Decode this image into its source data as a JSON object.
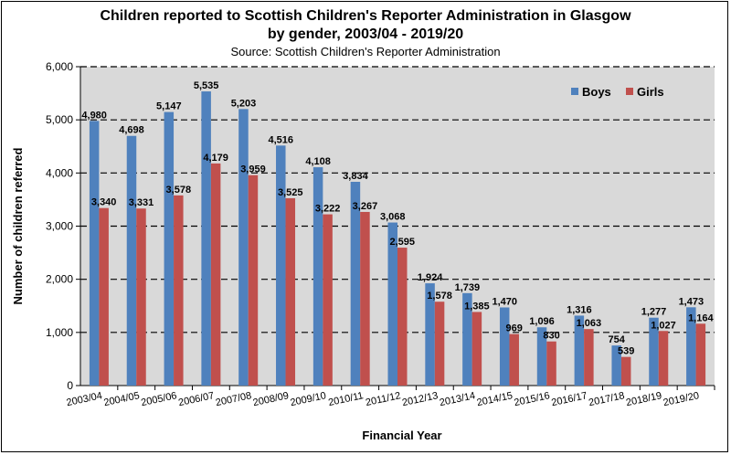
{
  "chart_data": {
    "type": "bar",
    "title": "Children reported to Scottish Children's Reporter Administration in Glasgow",
    "title_line2": "by gender, 2003/04 - 2019/20",
    "subtitle": "Source: Scottish Children's Reporter Administration",
    "xlabel": "Financial Year",
    "ylabel": "Number of children referred",
    "ylim": [
      0,
      6000
    ],
    "yticks": [
      0,
      1000,
      2000,
      3000,
      4000,
      5000,
      6000
    ],
    "ytick_labels": [
      "0",
      "1,000",
      "2,000",
      "3,000",
      "4,000",
      "5,000",
      "6,000"
    ],
    "grid": true,
    "legend_position": "top-right",
    "categories": [
      "2003/04",
      "2004/05",
      "2005/06",
      "2006/07",
      "2007/08",
      "2008/09",
      "2009/10",
      "2010/11",
      "2011/12",
      "2012/13",
      "2013/14",
      "2014/15",
      "2015/16",
      "2016/17",
      "2017/18",
      "2018/19",
      "2019/20"
    ],
    "series": [
      {
        "name": "Boys",
        "color": "#4f81bd",
        "values": [
          4980,
          4698,
          5147,
          5535,
          5203,
          4516,
          4108,
          3834,
          3068,
          1924,
          1739,
          1470,
          1096,
          1316,
          754,
          1277,
          1473
        ],
        "labels": [
          "4,980",
          "4,698",
          "5,147",
          "5,535",
          "5,203",
          "4,516",
          "4,108",
          "3,834",
          "3,068",
          "1,924",
          "1,739",
          "1,470",
          "1,096",
          "1,316",
          "754",
          "1,277",
          "1,473"
        ]
      },
      {
        "name": "Girls",
        "color": "#c0504d",
        "values": [
          3340,
          3331,
          3578,
          4179,
          3959,
          3525,
          3222,
          3267,
          2595,
          1578,
          1385,
          969,
          830,
          1063,
          539,
          1027,
          1164
        ],
        "labels": [
          "3,340",
          "3,331",
          "3,578",
          "4,179",
          "3,959",
          "3,525",
          "3,222",
          "3,267",
          "2,595",
          "1,578",
          "1,385",
          "969",
          "830",
          "1,063",
          "539",
          "1,027",
          "1,164"
        ]
      }
    ],
    "plot_background": "#d9d9d9"
  }
}
